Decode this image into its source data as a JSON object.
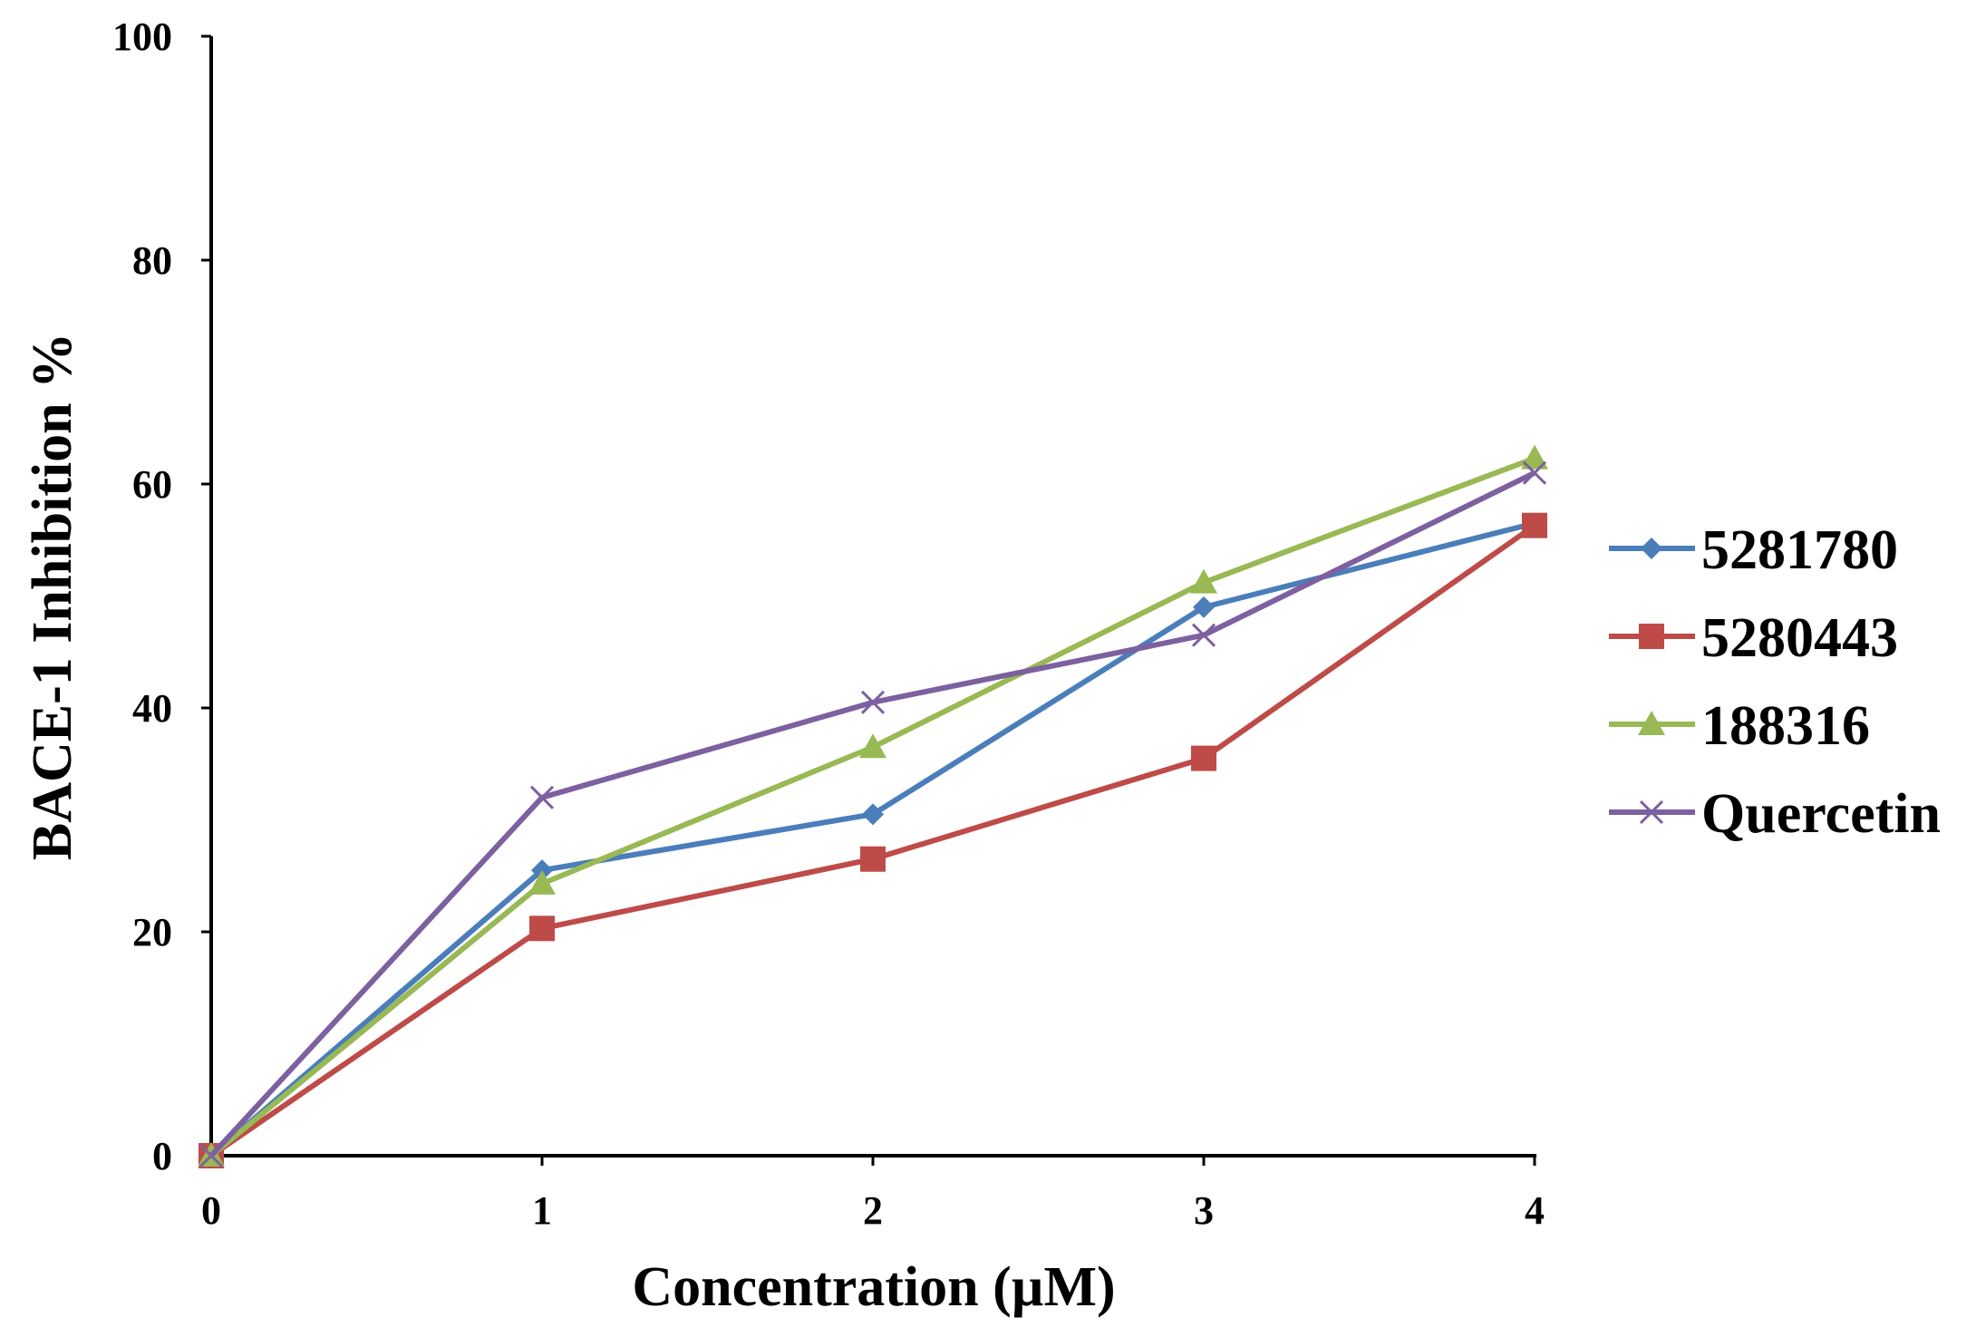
{
  "chart_data": {
    "type": "line",
    "title": "",
    "xlabel": "Concentration (µM)",
    "ylabel": "BACE-1 Inhibition %",
    "x": [
      0,
      1,
      2,
      3,
      4
    ],
    "xlim": [
      0,
      4
    ],
    "ylim": [
      0,
      100
    ],
    "yticks": [
      0,
      20,
      40,
      60,
      80,
      100
    ],
    "xticks": [
      0,
      1,
      2,
      3,
      4
    ],
    "grid": false,
    "legend_position": "right",
    "series": [
      {
        "name": "5281780",
        "color": "#4a7ebb",
        "marker": "diamond",
        "values": [
          0,
          25.5,
          30.5,
          49,
          56.5
        ]
      },
      {
        "name": "5280443",
        "color": "#be4b48",
        "marker": "square",
        "values": [
          0,
          20.3,
          26.5,
          35.5,
          56.3
        ]
      },
      {
        "name": "188316",
        "color": "#98b954",
        "marker": "triangle",
        "values": [
          0,
          24.3,
          36.5,
          51.2,
          62.3
        ]
      },
      {
        "name": "Quercetin",
        "color": "#7d60a0",
        "marker": "x",
        "values": [
          0,
          32,
          40.5,
          46.5,
          61
        ]
      }
    ]
  }
}
